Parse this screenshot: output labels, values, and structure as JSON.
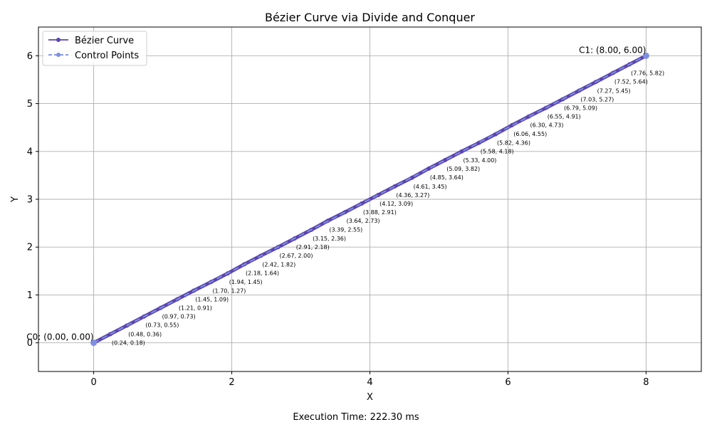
{
  "footer": {
    "execution_time": "Execution Time: 222.30 ms"
  },
  "chart_data": {
    "type": "line",
    "title": "Bézier Curve via Divide and Conquer",
    "xlabel": "X",
    "ylabel": "Y",
    "xlim": [
      -0.8,
      8.8
    ],
    "ylim": [
      -0.6,
      6.6
    ],
    "xticks": [
      0,
      2,
      4,
      6,
      8
    ],
    "yticks": [
      0,
      1,
      2,
      3,
      4,
      5,
      6
    ],
    "grid": true,
    "legend_position": "top-left",
    "series": [
      {
        "name": "Bézier Curve",
        "color": "#5b45b0",
        "style": "solid-with-markers",
        "points": [
          [
            0.0,
            0.0
          ],
          [
            0.24,
            0.18
          ],
          [
            0.48,
            0.36
          ],
          [
            0.73,
            0.55
          ],
          [
            0.97,
            0.73
          ],
          [
            1.21,
            0.91
          ],
          [
            1.45,
            1.09
          ],
          [
            1.7,
            1.27
          ],
          [
            1.94,
            1.45
          ],
          [
            2.18,
            1.64
          ],
          [
            2.42,
            1.82
          ],
          [
            2.67,
            2.0
          ],
          [
            2.91,
            2.18
          ],
          [
            3.15,
            2.36
          ],
          [
            3.39,
            2.55
          ],
          [
            3.64,
            2.73
          ],
          [
            3.88,
            2.91
          ],
          [
            4.12,
            3.09
          ],
          [
            4.36,
            3.27
          ],
          [
            4.61,
            3.45
          ],
          [
            4.85,
            3.64
          ],
          [
            5.09,
            3.82
          ],
          [
            5.33,
            4.0
          ],
          [
            5.58,
            4.18
          ],
          [
            5.82,
            4.36
          ],
          [
            6.06,
            4.55
          ],
          [
            6.3,
            4.73
          ],
          [
            6.55,
            4.91
          ],
          [
            6.79,
            5.09
          ],
          [
            7.03,
            5.27
          ],
          [
            7.27,
            5.45
          ],
          [
            7.52,
            5.64
          ],
          [
            7.76,
            5.82
          ],
          [
            8.0,
            6.0
          ]
        ]
      },
      {
        "name": "Control Points",
        "color": "#7f8fe0",
        "style": "dashed-with-markers",
        "points": [
          [
            0.0,
            0.0
          ],
          [
            8.0,
            6.0
          ]
        ]
      }
    ],
    "point_labels": [
      "(0.24, 0.18)",
      "(0.48, 0.36)",
      "(0.73, 0.55)",
      "(0.97, 0.73)",
      "(1.21, 0.91)",
      "(1.45, 1.09)",
      "(1.70, 1.27)",
      "(1.94, 1.45)",
      "(2.18, 1.64)",
      "(2.42, 1.82)",
      "(2.67, 2.00)",
      "(2.91, 2.18)",
      "(3.15, 2.36)",
      "(3.39, 2.55)",
      "(3.64, 2.73)",
      "(3.88, 2.91)",
      "(4.12, 3.09)",
      "(4.36, 3.27)",
      "(4.61, 3.45)",
      "(4.85, 3.64)",
      "(5.09, 3.82)",
      "(5.33, 4.00)",
      "(5.58, 4.18)",
      "(5.82, 4.36)",
      "(6.06, 4.55)",
      "(6.30, 4.73)",
      "(6.55, 4.91)",
      "(6.79, 5.09)",
      "(7.03, 5.27)",
      "(7.27, 5.45)",
      "(7.52, 5.64)",
      "(7.76, 5.82)"
    ],
    "control_labels": [
      {
        "text": "C0: (0.00, 0.00)",
        "x": 0.0,
        "y": 0.0
      },
      {
        "text": "C1: (8.00, 6.00)",
        "x": 8.0,
        "y": 6.0
      }
    ]
  }
}
